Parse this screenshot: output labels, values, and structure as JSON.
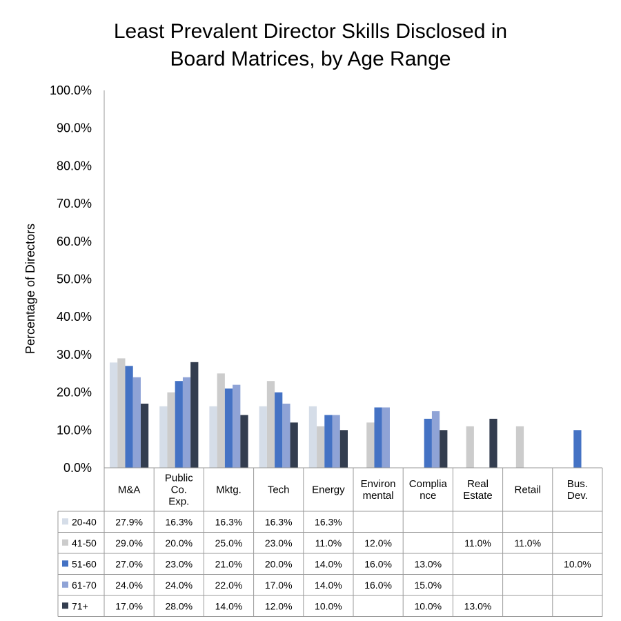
{
  "chart_data": {
    "type": "bar",
    "title_lines": [
      "Least Prevalent Director Skills Disclosed in",
      "Board Matrices, by Age Range"
    ],
    "ylabel": "Percentage of Directors",
    "xlabel": "",
    "ylim": [
      0,
      100
    ],
    "y_ticks": [
      "0.0%",
      "10.0%",
      "20.0%",
      "30.0%",
      "40.0%",
      "50.0%",
      "60.0%",
      "70.0%",
      "80.0%",
      "90.0%",
      "100.0%"
    ],
    "grid": false,
    "legend_placement": "data-table",
    "categories": [
      [
        "M&A"
      ],
      [
        "Public",
        "Co.",
        "Exp."
      ],
      [
        "Mktg."
      ],
      [
        "Tech"
      ],
      [
        "Energy"
      ],
      [
        "Environ",
        "mental"
      ],
      [
        "Complia",
        "nce"
      ],
      [
        "Real",
        "Estate"
      ],
      [
        "Retail"
      ],
      [
        "Bus.",
        "Dev."
      ]
    ],
    "series": [
      {
        "name": "20-40",
        "color": "#d5dde8",
        "values": [
          27.9,
          16.3,
          16.3,
          16.3,
          16.3,
          null,
          null,
          null,
          null,
          null
        ],
        "labels": [
          "27.9%",
          "16.3%",
          "16.3%",
          "16.3%",
          "16.3%",
          "",
          "",
          "",
          "",
          ""
        ]
      },
      {
        "name": "41-50",
        "color": "#cccccc",
        "values": [
          29.0,
          20.0,
          25.0,
          23.0,
          11.0,
          12.0,
          null,
          11.0,
          11.0,
          null
        ],
        "labels": [
          "29.0%",
          "20.0%",
          "25.0%",
          "23.0%",
          "11.0%",
          "12.0%",
          "",
          "11.0%",
          "11.0%",
          ""
        ]
      },
      {
        "name": "51-60",
        "color": "#4472c4",
        "values": [
          27.0,
          23.0,
          21.0,
          20.0,
          14.0,
          16.0,
          13.0,
          null,
          null,
          10.0
        ],
        "labels": [
          "27.0%",
          "23.0%",
          "21.0%",
          "20.0%",
          "14.0%",
          "16.0%",
          "13.0%",
          "",
          "",
          "10.0%"
        ]
      },
      {
        "name": "61-70",
        "color": "#8fa3d6",
        "values": [
          24.0,
          24.0,
          22.0,
          17.0,
          14.0,
          16.0,
          15.0,
          null,
          null,
          null
        ],
        "labels": [
          "24.0%",
          "24.0%",
          "22.0%",
          "17.0%",
          "14.0%",
          "16.0%",
          "15.0%",
          "",
          "",
          ""
        ]
      },
      {
        "name": "71+",
        "color": "#333d4f",
        "values": [
          17.0,
          28.0,
          14.0,
          12.0,
          10.0,
          null,
          10.0,
          13.0,
          null,
          null
        ],
        "labels": [
          "17.0%",
          "28.0%",
          "14.0%",
          "12.0%",
          "10.0%",
          "",
          "10.0%",
          "13.0%",
          "",
          ""
        ]
      }
    ]
  }
}
